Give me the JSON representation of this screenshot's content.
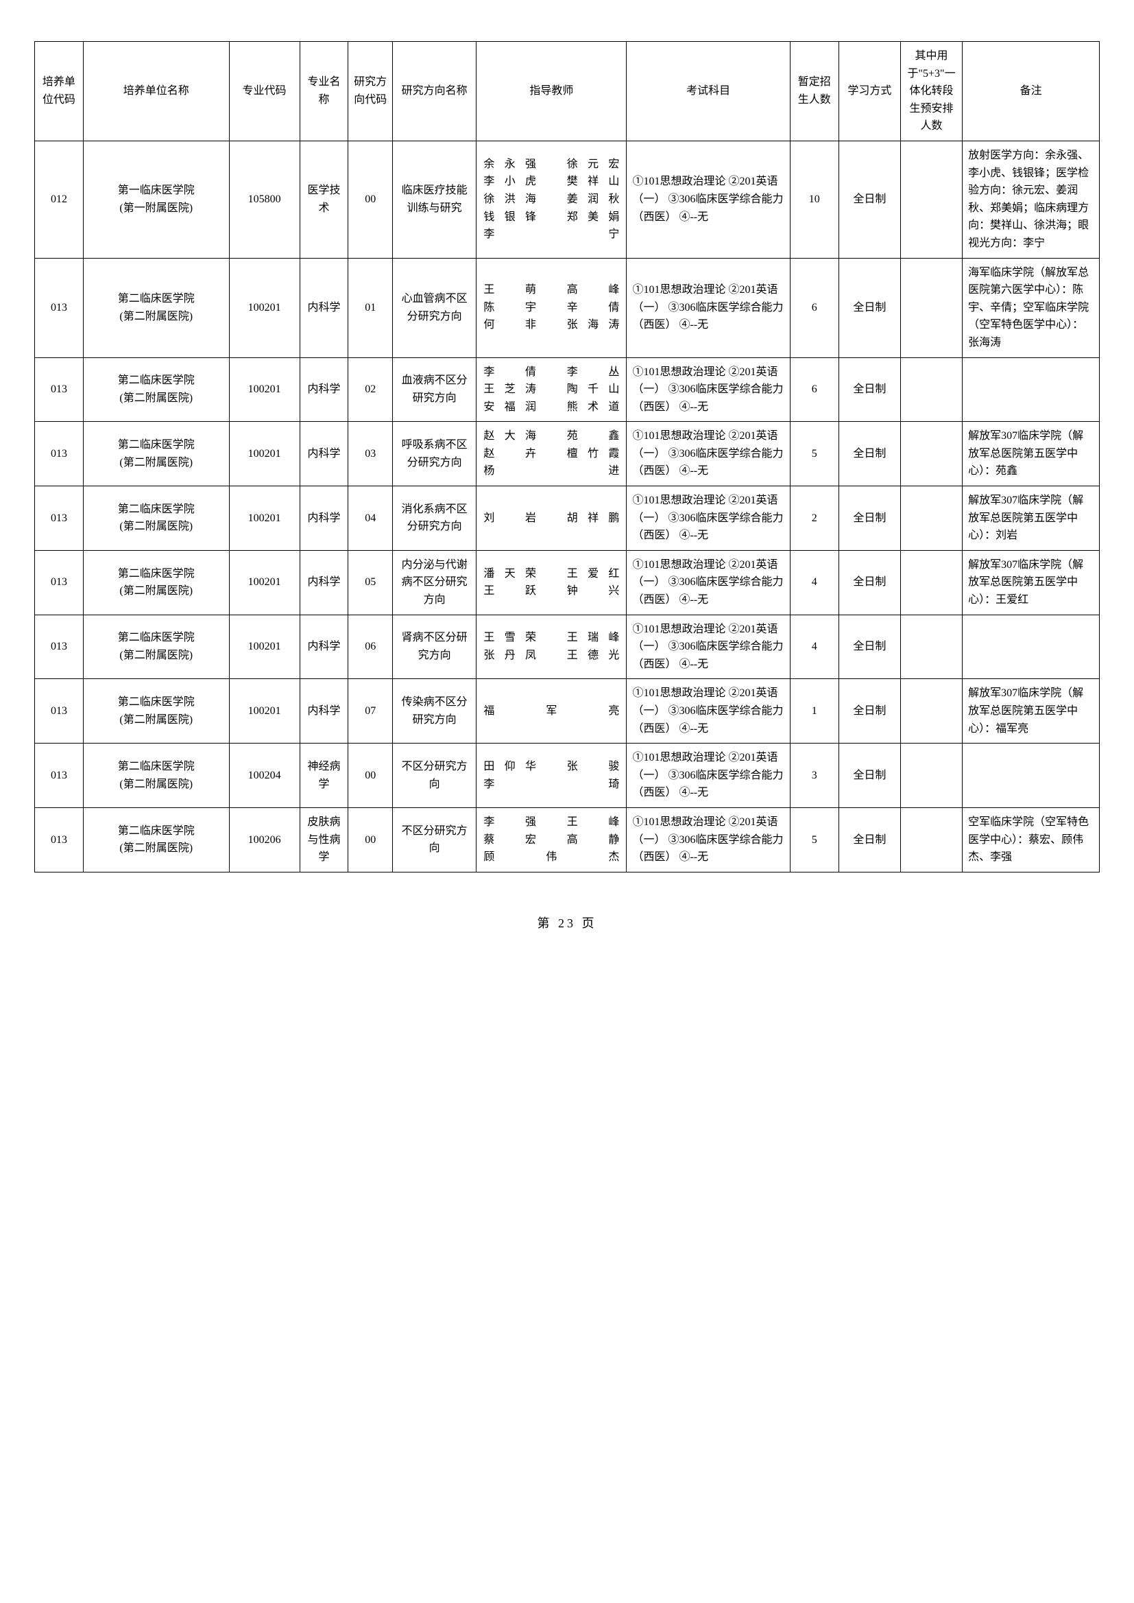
{
  "columns": [
    "培养单位代码",
    "培养单位名称",
    "专业代码",
    "专业名称",
    "研究方向代码",
    "研究方向名称",
    "指导教师",
    "考试科目",
    "暂定招生人数",
    "学习方式",
    "其中用于\"5+3\"一体化转段生预安排人数",
    "备注"
  ],
  "rows": [
    {
      "code": "012",
      "name": "第一临床医学院\n(第一附属医院)",
      "majorCode": "105800",
      "majorName": "医学技术",
      "dirCode": "00",
      "dirName": "临床医疗技能训练与研究",
      "teacher": "余永强　徐元宏\n李小虎　樊祥山\n徐洪海　姜润秋\n钱银锋　郑美娟\n李　宁",
      "exam": "①101思想政治理论 ②201英语（一） ③306临床医学综合能力（西医） ④--无",
      "enroll": "10",
      "study": "全日制",
      "extra": "",
      "remark": "放射医学方向：余永强、李小虎、钱银锋；医学检验方向：徐元宏、姜润秋、郑美娟；临床病理方向：樊祥山、徐洪海；眼视光方向：李宁"
    },
    {
      "code": "013",
      "name": "第二临床医学院\n(第二附属医院)",
      "majorCode": "100201",
      "majorName": "内科学",
      "dirCode": "01",
      "dirName": "心血管病不区分研究方向",
      "teacher": "王　萌　高　峰\n陈　宇　辛　倩\n何　非　张海涛",
      "exam": "①101思想政治理论 ②201英语（一） ③306临床医学综合能力（西医） ④--无",
      "enroll": "6",
      "study": "全日制",
      "extra": "",
      "remark": "海军临床学院（解放军总医院第六医学中心）：陈宇、辛倩；空军临床学院（空军特色医学中心）：张海涛"
    },
    {
      "code": "013",
      "name": "第二临床医学院\n(第二附属医院)",
      "majorCode": "100201",
      "majorName": "内科学",
      "dirCode": "02",
      "dirName": "血液病不区分研究方向",
      "teacher": "李　倩　李　丛\n王芝涛　陶千山\n安福润　熊术道",
      "exam": "①101思想政治理论 ②201英语（一） ③306临床医学综合能力（西医） ④--无",
      "enroll": "6",
      "study": "全日制",
      "extra": "",
      "remark": ""
    },
    {
      "code": "013",
      "name": "第二临床医学院\n(第二附属医院)",
      "majorCode": "100201",
      "majorName": "内科学",
      "dirCode": "03",
      "dirName": "呼吸系病不区分研究方向",
      "teacher": "赵大海　苑　鑫\n赵　卉　檀竹霞\n杨　进",
      "exam": "①101思想政治理论 ②201英语（一） ③306临床医学综合能力（西医） ④--无",
      "enroll": "5",
      "study": "全日制",
      "extra": "",
      "remark": "解放军307临床学院（解放军总医院第五医学中心）：苑鑫"
    },
    {
      "code": "013",
      "name": "第二临床医学院\n(第二附属医院)",
      "majorCode": "100201",
      "majorName": "内科学",
      "dirCode": "04",
      "dirName": "消化系病不区分研究方向",
      "teacher": "刘　岩　胡祥鹏",
      "exam": "①101思想政治理论 ②201英语（一） ③306临床医学综合能力（西医） ④--无",
      "enroll": "2",
      "study": "全日制",
      "extra": "",
      "remark": "解放军307临床学院（解放军总医院第五医学中心）：刘岩"
    },
    {
      "code": "013",
      "name": "第二临床医学院\n(第二附属医院)",
      "majorCode": "100201",
      "majorName": "内科学",
      "dirCode": "05",
      "dirName": "内分泌与代谢病不区分研究方向",
      "teacher": "潘天荣　王爱红\n王　跃　钟　兴",
      "exam": "①101思想政治理论 ②201英语（一） ③306临床医学综合能力（西医） ④--无",
      "enroll": "4",
      "study": "全日制",
      "extra": "",
      "remark": "解放军307临床学院（解放军总医院第五医学中心）：王爱红"
    },
    {
      "code": "013",
      "name": "第二临床医学院\n(第二附属医院)",
      "majorCode": "100201",
      "majorName": "内科学",
      "dirCode": "06",
      "dirName": "肾病不区分研究方向",
      "teacher": "王雪荣　王瑞峰\n张丹凤　王德光",
      "exam": "①101思想政治理论 ②201英语（一） ③306临床医学综合能力（西医） ④--无",
      "enroll": "4",
      "study": "全日制",
      "extra": "",
      "remark": ""
    },
    {
      "code": "013",
      "name": "第二临床医学院\n(第二附属医院)",
      "majorCode": "100201",
      "majorName": "内科学",
      "dirCode": "07",
      "dirName": "传染病不区分研究方向",
      "teacher": "福军亮",
      "exam": "①101思想政治理论 ②201英语（一） ③306临床医学综合能力（西医） ④--无",
      "enroll": "1",
      "study": "全日制",
      "extra": "",
      "remark": "解放军307临床学院（解放军总医院第五医学中心）：福军亮"
    },
    {
      "code": "013",
      "name": "第二临床医学院\n(第二附属医院)",
      "majorCode": "100204",
      "majorName": "神经病学",
      "dirCode": "00",
      "dirName": "不区分研究方向",
      "teacher": "田仰华　张　骏\n李　琦",
      "exam": "①101思想政治理论 ②201英语（一） ③306临床医学综合能力（西医） ④--无",
      "enroll": "3",
      "study": "全日制",
      "extra": "",
      "remark": ""
    },
    {
      "code": "013",
      "name": "第二临床医学院\n(第二附属医院)",
      "majorCode": "100206",
      "majorName": "皮肤病与性病学",
      "dirCode": "00",
      "dirName": "不区分研究方向",
      "teacher": "李　强　王　峰\n蔡　宏　高　静\n顾伟杰",
      "exam": "①101思想政治理论 ②201英语（一） ③306临床医学综合能力（西医） ④--无",
      "enroll": "5",
      "study": "全日制",
      "extra": "",
      "remark": "空军临床学院（空军特色医学中心）：蔡宏、顾伟杰、李强"
    }
  ],
  "footer": "第 23 页"
}
